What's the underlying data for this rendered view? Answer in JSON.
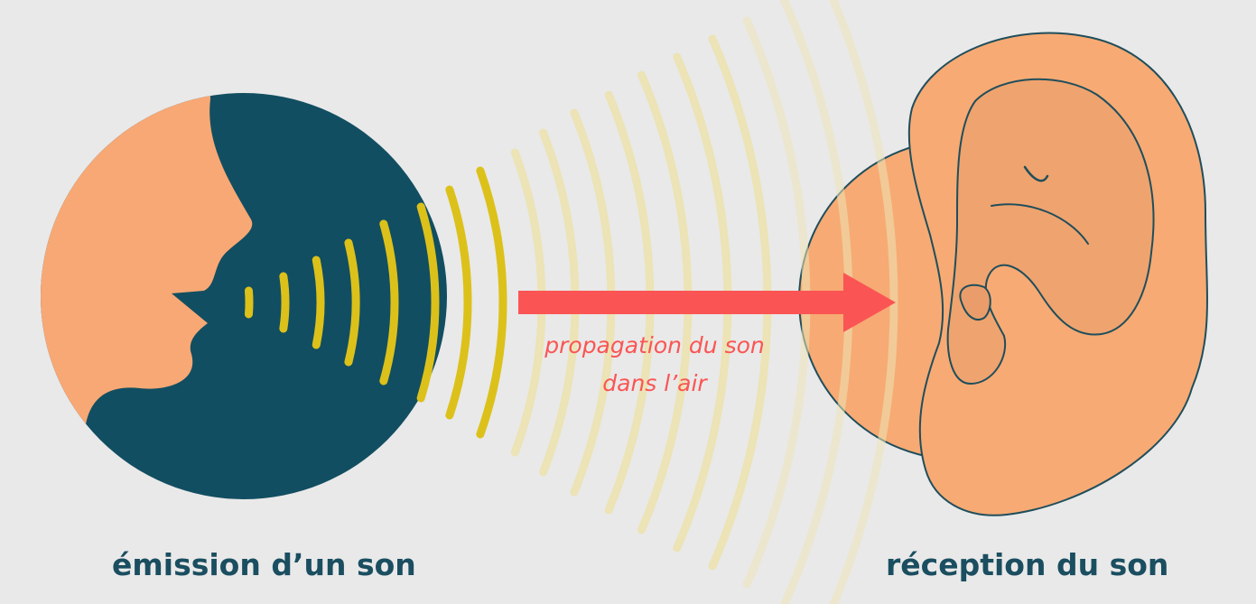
{
  "colors": {
    "background": "#e9e9e9",
    "head_circle": "#124e61",
    "face": "#f8a874",
    "sound_wave": "#dcc11a",
    "sound_wave_faded": "#ece3b6",
    "arrow": "#fa5554",
    "ear": "#f7aa73",
    "ear_shadow": "#ea9d6a",
    "ear_outline": "#1f4e5c",
    "caption_text": "#1a4e60"
  },
  "icons": {
    "speaker": "speaking-head-icon",
    "listener": "ear-icon"
  },
  "captions": {
    "left": "émission d’un son",
    "right": "réception du son"
  },
  "propagation": {
    "line1": "propagation du son",
    "line2": "dans l’air"
  }
}
